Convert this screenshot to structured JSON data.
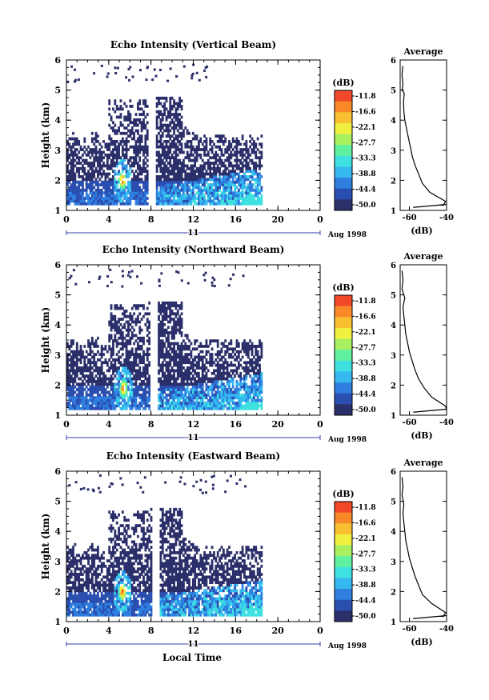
{
  "figure": {
    "xlabel": "Local Time"
  },
  "colors": {
    "scale": [
      "#2b2f6a",
      "#2b4fb0",
      "#2e7fe0",
      "#35b8f0",
      "#3fe0e0",
      "#5ff0a0",
      "#a8f060",
      "#f0f040",
      "#f8c030",
      "#f88828",
      "#f04828"
    ],
    "axis": "#000000",
    "time_axis_line": "#3a3fa8"
  },
  "chart_data": [
    {
      "type": "heatmap",
      "title": "Echo Intensity (Vertical Beam)",
      "ylabel": "Height (km)",
      "xlim": [
        0,
        24
      ],
      "ylim": [
        1,
        6
      ],
      "xticks": [
        "0",
        "4",
        "8",
        "12",
        "16",
        "20",
        "0"
      ],
      "yticks": [
        "1",
        "2",
        "3",
        "4",
        "5",
        "6"
      ],
      "date_axis": {
        "day": "11",
        "month_year": "Aug 1998"
      },
      "colorbar": {
        "unit": "(dB)",
        "labels": [
          "-11.8",
          "-16.6",
          "-22.1",
          "-27.7",
          "-33.3",
          "-38.8",
          "-44.4",
          "-50.0"
        ]
      },
      "data_gap_hours": [
        7.8,
        8.3
      ],
      "data_end_hour": 18.5,
      "convective_core": {
        "time_hour": 5.3,
        "height_km": 2.0,
        "peak_db": -11.8
      },
      "profile": {
        "title": "Average",
        "xlabel": "(dB)",
        "xlim": [
          -65,
          -40
        ],
        "xticks": [
          "-60",
          "-40"
        ],
        "height_km": [
          1.15,
          1.3,
          1.6,
          1.9,
          2.2,
          2.5,
          2.8,
          3.1,
          3.4,
          3.7,
          4.0,
          4.3,
          4.6,
          4.9,
          5.0,
          5.2,
          5.5,
          5.8
        ],
        "db": [
          -42,
          -40.5,
          -49,
          -53,
          -55,
          -57,
          -58.5,
          -59.5,
          -60.5,
          -61.5,
          -62.5,
          -63,
          -63.2,
          -62.8,
          -64,
          -63.5,
          -64,
          -63.6
        ]
      }
    },
    {
      "type": "heatmap",
      "title": "Echo Intensity (Northward Beam)",
      "ylabel": "Height (km)",
      "xlim": [
        0,
        24
      ],
      "ylim": [
        1,
        6
      ],
      "xticks": [
        "0",
        "4",
        "8",
        "12",
        "16",
        "20",
        "0"
      ],
      "yticks": [
        "1",
        "2",
        "3",
        "4",
        "5",
        "6"
      ],
      "date_axis": {
        "day": "11",
        "month_year": "Aug 1998"
      },
      "colorbar": {
        "unit": "(dB)",
        "labels": [
          "-11.8",
          "-16.6",
          "-22.1",
          "-27.7",
          "-33.3",
          "-38.8",
          "-44.4",
          "-50.0"
        ]
      },
      "data_gap_hours": [
        8.0,
        8.5
      ],
      "data_end_hour": 18.5,
      "convective_core": {
        "time_hour": 5.4,
        "height_km": 1.9,
        "peak_db": -11.8
      },
      "profile": {
        "title": "Average",
        "xlabel": "(dB)",
        "xlim": [
          -65,
          -40
        ],
        "xticks": [
          "-60",
          "-40"
        ],
        "height_km": [
          1.15,
          1.3,
          1.6,
          1.9,
          2.2,
          2.5,
          2.8,
          3.1,
          3.4,
          3.7,
          4.0,
          4.3,
          4.6,
          4.9,
          5.2,
          5.5,
          5.8
        ],
        "db": [
          -40,
          -40.5,
          -48,
          -52,
          -55,
          -57,
          -58.5,
          -60,
          -61,
          -62,
          -62.5,
          -63,
          -63.5,
          -62.5,
          -64,
          -63.5,
          -64
        ]
      }
    },
    {
      "type": "heatmap",
      "title": "Echo Intensity (Eastward Beam)",
      "ylabel": "Height (km)",
      "xlim": [
        0,
        24
      ],
      "ylim": [
        1,
        6
      ],
      "xticks": [
        "0",
        "4",
        "8",
        "12",
        "16",
        "20",
        "0"
      ],
      "yticks": [
        "1",
        "2",
        "3",
        "4",
        "5",
        "6"
      ],
      "date_axis": {
        "day": "11",
        "month_year": "Aug 1998"
      },
      "colorbar": {
        "unit": "(dB)",
        "labels": [
          "-11.8",
          "-16.6",
          "-22.1",
          "-27.7",
          "-33.3",
          "-38.8",
          "-44.4",
          "-50.0"
        ]
      },
      "data_gap_hours": [
        8.2,
        8.7
      ],
      "data_end_hour": 18.5,
      "convective_core": {
        "time_hour": 5.3,
        "height_km": 2.0,
        "peak_db": -11.8
      },
      "profile": {
        "title": "Average",
        "xlabel": "(dB)",
        "xlim": [
          -65,
          -40
        ],
        "xticks": [
          "-60",
          "-40"
        ],
        "height_km": [
          1.15,
          1.3,
          1.6,
          1.9,
          2.2,
          2.5,
          2.8,
          3.1,
          3.4,
          3.7,
          4.0,
          4.3,
          4.6,
          4.9,
          5.2,
          5.5,
          5.8
        ],
        "db": [
          -42,
          -40.5,
          -48,
          -53,
          -55,
          -57,
          -58.5,
          -60,
          -61,
          -62,
          -62.5,
          -63,
          -63.5,
          -63,
          -64,
          -63.5,
          -64
        ]
      }
    }
  ]
}
